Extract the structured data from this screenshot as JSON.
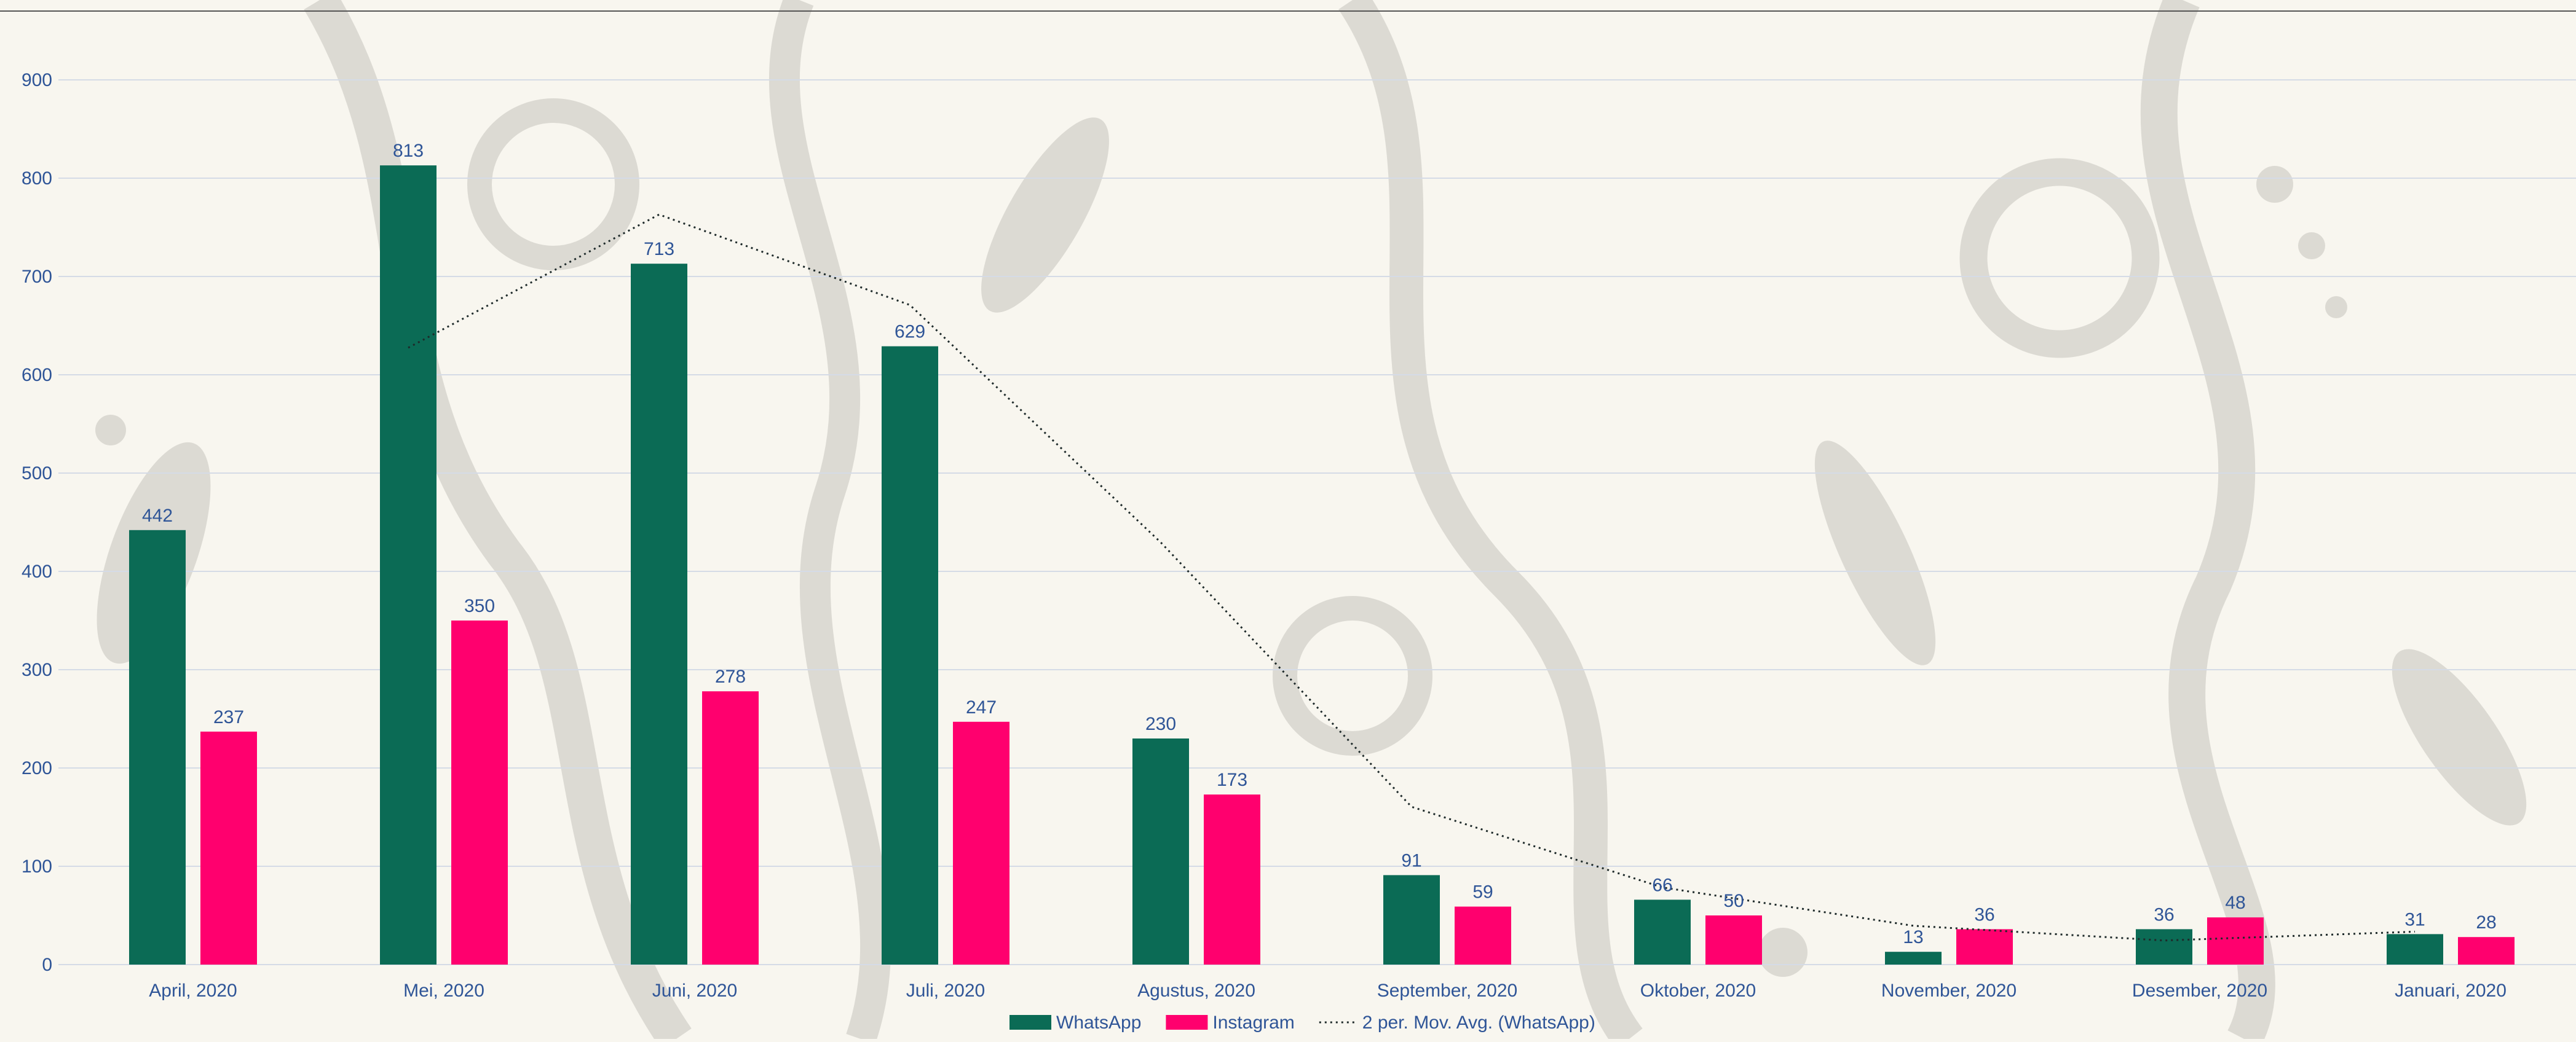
{
  "chart_data": {
    "type": "bar",
    "categories": [
      "April, 2020",
      "Mei, 2020",
      "Juni, 2020",
      "Juli, 2020",
      "Agustus, 2020",
      "September, 2020",
      "Oktober, 2020",
      "November, 2020",
      "Desember, 2020",
      "Januari, 2020"
    ],
    "series": [
      {
        "name": "WhatsApp",
        "values": [
          442,
          813,
          713,
          629,
          230,
          91,
          66,
          13,
          36,
          31
        ]
      },
      {
        "name": "Instagram",
        "values": [
          237,
          350,
          278,
          247,
          173,
          59,
          50,
          36,
          48,
          28
        ]
      }
    ],
    "trendline": {
      "name": "2 per. Mov. Avg. (WhatsApp)",
      "type": "moving-average",
      "period": 2,
      "values": [
        null,
        627.5,
        763,
        671,
        429.5,
        160.5,
        78.5,
        39.5,
        24.5,
        33.5
      ]
    },
    "ylim": [
      0,
      900
    ],
    "yticks": [
      0,
      100,
      200,
      300,
      400,
      500,
      600,
      700,
      800,
      900
    ],
    "grid": true,
    "legend": "bottom",
    "data_labels": true,
    "colors": {
      "WhatsApp": "#0b6b55",
      "Instagram": "#ff006e",
      "trendline": "#1e2a2a",
      "labels": "#2f5597",
      "gridline": "#d5dbe6",
      "background": "#f8f6ef",
      "pattern": "#dcdad3"
    }
  }
}
